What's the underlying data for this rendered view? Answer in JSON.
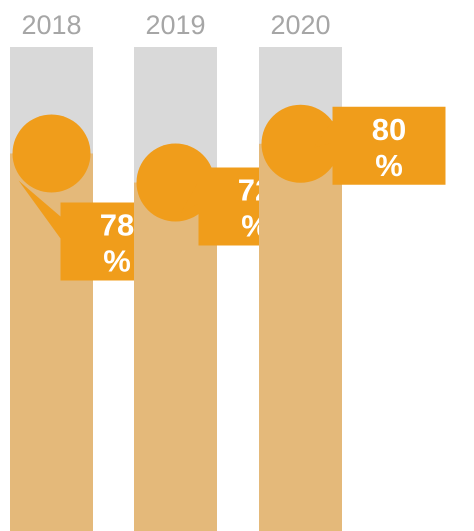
{
  "chart_data": {
    "type": "bar",
    "categories": [
      "2018",
      "2019",
      "2020"
    ],
    "values": [
      78,
      72,
      80
    ],
    "value_labels": [
      "78\n%",
      "72\n%",
      "80\n%"
    ],
    "unit": "%",
    "ylim": [
      0,
      100
    ],
    "title": "",
    "xlabel": "",
    "ylabel": "",
    "grid": false,
    "legend": "none"
  },
  "colors": {
    "track": "#d9d9d9",
    "fill": "#e4b97a",
    "accent": "#f09d1b",
    "axis_text": "#a6a6a6",
    "label_text": "#ffffff"
  }
}
